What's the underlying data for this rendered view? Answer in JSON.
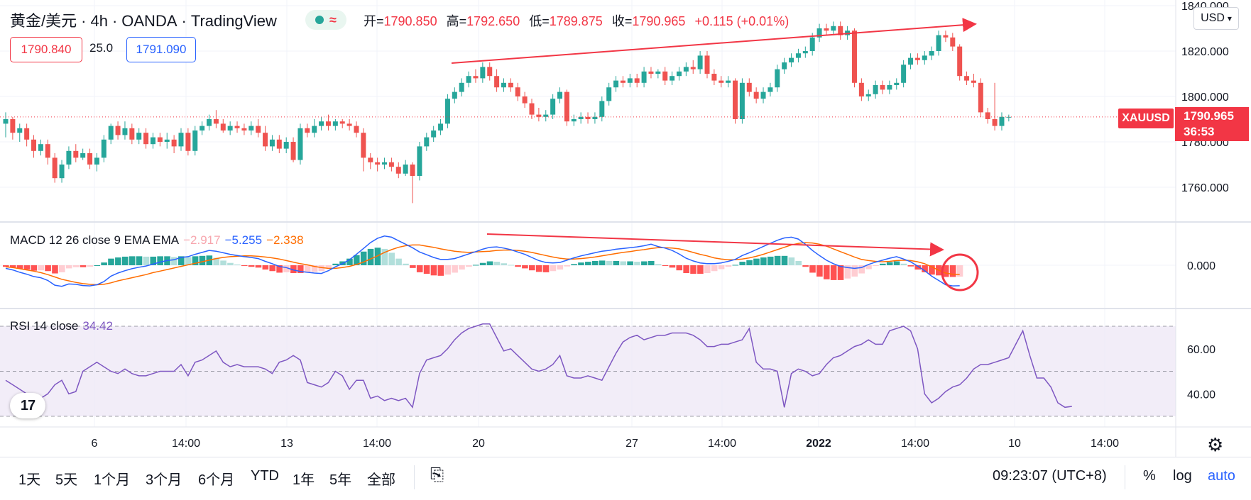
{
  "header": {
    "symbol": "黄金/美元",
    "sep1": "·",
    "interval": "4h",
    "sep2": "·",
    "broker": "OANDA",
    "sep3": "·",
    "platform": "TradingView",
    "ohlc": {
      "open_label": "开=",
      "open": "1790.850",
      "high_label": "高=",
      "high": "1792.650",
      "low_label": "低=",
      "low": "1789.875",
      "close_label": "收=",
      "close": "1790.965",
      "change": "+0.115 (+0.01%)"
    },
    "sell_price": "1790.840",
    "spread": "25.0",
    "buy_price": "1791.090"
  },
  "currency_button": "USD",
  "price_scale": {
    "ticks": [
      "1840.000",
      "1820.000",
      "1800.000",
      "1780.000",
      "1760.000"
    ],
    "current_price": "1790.965",
    "countdown": "36:53",
    "symbol_tag": "XAUUSD"
  },
  "macd": {
    "legend_name": "MACD 12 26 close 9 EMA EMA",
    "hist_value": "−2.917",
    "macd_value": "−5.255",
    "signal_value": "−2.338",
    "scale_tick": "0.000"
  },
  "rsi": {
    "legend_name": "RSI 14 close",
    "value": "34.42",
    "scale_ticks": [
      "60.00",
      "40.00"
    ]
  },
  "time_axis": {
    "labels": [
      "6",
      "14:00",
      "13",
      "14:00",
      "20",
      "27",
      "14:00",
      "2022",
      "14:00",
      "10",
      "14:00"
    ]
  },
  "range_buttons": [
    "1天",
    "5天",
    "1个月",
    "3个月",
    "6个月",
    "YTD",
    "1年",
    "5年",
    "全部"
  ],
  "clock": "09:23:07 (UTC+8)",
  "right_controls": {
    "percent": "%",
    "log": "log",
    "auto": "auto"
  },
  "icons": {
    "settings": "gear-icon",
    "date_range": "calendar-range-icon",
    "logo": "tradingview-logo-icon"
  },
  "colors": {
    "up": "#26a69a",
    "down": "#ef5350",
    "macd": "#2962ff",
    "signal": "#ff6d00",
    "rsi": "#7e57c2",
    "annotation": "#f23645"
  },
  "chart_data": {
    "type": "candlestick",
    "ylim": [
      1750,
      1840
    ],
    "last_price": 1790.965,
    "candles": [
      [
        1788,
        1790,
        1782,
        1793
      ],
      [
        1790,
        1784,
        1781,
        1791
      ],
      [
        1784,
        1786,
        1780,
        1788
      ],
      [
        1786,
        1781,
        1778,
        1788
      ],
      [
        1781,
        1776,
        1773,
        1783
      ],
      [
        1776,
        1779,
        1774,
        1781
      ],
      [
        1779,
        1773,
        1770,
        1781
      ],
      [
        1773,
        1764,
        1762,
        1775
      ],
      [
        1764,
        1770,
        1762,
        1772
      ],
      [
        1770,
        1776,
        1768,
        1778
      ],
      [
        1776,
        1773,
        1771,
        1779
      ],
      [
        1773,
        1775,
        1772,
        1777
      ],
      [
        1775,
        1770,
        1768,
        1777
      ],
      [
        1770,
        1773,
        1767,
        1775
      ],
      [
        1773,
        1781,
        1771,
        1783
      ],
      [
        1781,
        1787,
        1779,
        1788
      ],
      [
        1787,
        1783,
        1781,
        1789
      ],
      [
        1783,
        1786,
        1781,
        1789
      ],
      [
        1786,
        1781,
        1779,
        1788
      ],
      [
        1781,
        1784,
        1779,
        1786
      ],
      [
        1784,
        1779,
        1777,
        1786
      ],
      [
        1779,
        1782,
        1777,
        1784
      ],
      [
        1782,
        1780,
        1778,
        1784
      ],
      [
        1780,
        1781,
        1777,
        1784
      ],
      [
        1781,
        1778,
        1775,
        1783
      ],
      [
        1778,
        1784,
        1776,
        1786
      ],
      [
        1784,
        1776,
        1774,
        1786
      ],
      [
        1776,
        1785,
        1774,
        1787
      ],
      [
        1785,
        1787,
        1783,
        1789
      ],
      [
        1787,
        1790,
        1785,
        1792
      ],
      [
        1790,
        1788,
        1786,
        1794
      ],
      [
        1788,
        1785,
        1784,
        1790
      ],
      [
        1785,
        1787,
        1783,
        1789
      ],
      [
        1787,
        1786,
        1784,
        1789
      ],
      [
        1786,
        1785,
        1783,
        1788
      ],
      [
        1785,
        1787,
        1783,
        1789
      ],
      [
        1787,
        1784,
        1782,
        1790
      ],
      [
        1784,
        1778,
        1776,
        1787
      ],
      [
        1778,
        1781,
        1776,
        1783
      ],
      [
        1781,
        1777,
        1775,
        1783
      ],
      [
        1777,
        1780,
        1775,
        1782
      ],
      [
        1780,
        1772,
        1771,
        1782
      ],
      [
        1772,
        1786,
        1770,
        1788
      ],
      [
        1786,
        1784,
        1782,
        1788
      ],
      [
        1784,
        1787,
        1782,
        1790
      ],
      [
        1787,
        1789,
        1785,
        1791
      ],
      [
        1789,
        1787,
        1785,
        1792
      ],
      [
        1787,
        1789,
        1785,
        1790
      ],
      [
        1789,
        1788,
        1786,
        1790
      ],
      [
        1788,
        1787,
        1785,
        1790
      ],
      [
        1787,
        1784,
        1782,
        1789
      ],
      [
        1784,
        1773,
        1767,
        1786
      ],
      [
        1773,
        1771,
        1768,
        1775
      ],
      [
        1771,
        1770,
        1767,
        1773
      ],
      [
        1770,
        1771,
        1768,
        1773
      ],
      [
        1771,
        1769,
        1767,
        1773
      ],
      [
        1769,
        1766,
        1764,
        1771
      ],
      [
        1766,
        1770,
        1765,
        1772
      ],
      [
        1770,
        1765,
        1753,
        1771
      ],
      [
        1765,
        1778,
        1763,
        1780
      ],
      [
        1778,
        1782,
        1776,
        1784
      ],
      [
        1782,
        1785,
        1780,
        1787
      ],
      [
        1785,
        1788,
        1783,
        1790
      ],
      [
        1788,
        1799,
        1786,
        1801
      ],
      [
        1799,
        1802,
        1797,
        1804
      ],
      [
        1802,
        1806,
        1800,
        1808
      ],
      [
        1806,
        1809,
        1804,
        1811
      ],
      [
        1809,
        1808,
        1806,
        1812
      ],
      [
        1808,
        1813,
        1806,
        1815
      ],
      [
        1813,
        1809,
        1807,
        1815
      ],
      [
        1809,
        1804,
        1802,
        1812
      ],
      [
        1804,
        1806,
        1802,
        1808
      ],
      [
        1806,
        1804,
        1802,
        1808
      ],
      [
        1804,
        1800,
        1798,
        1806
      ],
      [
        1800,
        1797,
        1795,
        1802
      ],
      [
        1797,
        1792,
        1790,
        1799
      ],
      [
        1792,
        1791,
        1789,
        1795
      ],
      [
        1791,
        1792,
        1789,
        1794
      ],
      [
        1792,
        1799,
        1790,
        1801
      ],
      [
        1799,
        1802,
        1797,
        1804
      ],
      [
        1802,
        1789,
        1787,
        1803
      ],
      [
        1789,
        1790,
        1787,
        1792
      ],
      [
        1790,
        1791,
        1788,
        1793
      ],
      [
        1791,
        1790,
        1788,
        1793
      ],
      [
        1790,
        1791,
        1788,
        1793
      ],
      [
        1791,
        1798,
        1789,
        1800
      ],
      [
        1798,
        1804,
        1796,
        1806
      ],
      [
        1804,
        1807,
        1802,
        1809
      ],
      [
        1807,
        1806,
        1804,
        1809
      ],
      [
        1806,
        1808,
        1804,
        1810
      ],
      [
        1808,
        1806,
        1804,
        1810
      ],
      [
        1806,
        1811,
        1804,
        1813
      ],
      [
        1811,
        1810,
        1808,
        1813
      ],
      [
        1810,
        1811,
        1808,
        1812
      ],
      [
        1811,
        1807,
        1805,
        1813
      ],
      [
        1807,
        1809,
        1805,
        1811
      ],
      [
        1809,
        1811,
        1807,
        1813
      ],
      [
        1811,
        1813,
        1809,
        1815
      ],
      [
        1813,
        1812,
        1810,
        1816
      ],
      [
        1812,
        1818,
        1810,
        1820
      ],
      [
        1818,
        1810,
        1808,
        1820
      ],
      [
        1810,
        1807,
        1805,
        1812
      ],
      [
        1807,
        1806,
        1804,
        1809
      ],
      [
        1806,
        1807,
        1804,
        1809
      ],
      [
        1807,
        1790,
        1788,
        1808
      ],
      [
        1790,
        1806,
        1788,
        1808
      ],
      [
        1806,
        1802,
        1800,
        1808
      ],
      [
        1802,
        1799,
        1797,
        1804
      ],
      [
        1799,
        1802,
        1797,
        1804
      ],
      [
        1802,
        1804,
        1800,
        1806
      ],
      [
        1804,
        1812,
        1802,
        1814
      ],
      [
        1812,
        1815,
        1810,
        1817
      ],
      [
        1815,
        1817,
        1813,
        1819
      ],
      [
        1817,
        1819,
        1815,
        1821
      ],
      [
        1819,
        1820,
        1817,
        1822
      ],
      [
        1820,
        1826,
        1818,
        1828
      ],
      [
        1826,
        1830,
        1824,
        1832
      ],
      [
        1830,
        1829,
        1827,
        1832
      ],
      [
        1829,
        1831,
        1827,
        1833
      ],
      [
        1831,
        1827,
        1825,
        1833
      ],
      [
        1827,
        1829,
        1825,
        1831
      ],
      [
        1829,
        1806,
        1804,
        1830
      ],
      [
        1806,
        1800,
        1798,
        1808
      ],
      [
        1800,
        1801,
        1798,
        1803
      ],
      [
        1801,
        1805,
        1799,
        1807
      ],
      [
        1805,
        1803,
        1801,
        1807
      ],
      [
        1803,
        1805,
        1801,
        1807
      ],
      [
        1805,
        1806,
        1803,
        1808
      ],
      [
        1806,
        1814,
        1804,
        1816
      ],
      [
        1814,
        1817,
        1812,
        1819
      ],
      [
        1817,
        1816,
        1814,
        1819
      ],
      [
        1816,
        1818,
        1814,
        1820
      ],
      [
        1818,
        1820,
        1816,
        1822
      ],
      [
        1820,
        1827,
        1818,
        1829
      ],
      [
        1827,
        1826,
        1824,
        1829
      ],
      [
        1826,
        1822,
        1820,
        1828
      ],
      [
        1822,
        1809,
        1807,
        1823
      ],
      [
        1809,
        1807,
        1805,
        1811
      ],
      [
        1807,
        1806,
        1804,
        1810
      ],
      [
        1806,
        1793,
        1791,
        1808
      ],
      [
        1793,
        1790,
        1788,
        1795
      ],
      [
        1790,
        1787,
        1785,
        1806
      ],
      [
        1787,
        1791,
        1785,
        1793
      ],
      [
        1791,
        1791,
        1789,
        1792
      ]
    ],
    "macd": {
      "macd_line": [
        -0.8,
        -1.2,
        -1.8,
        -2.3,
        -2.9,
        -3.2,
        -3.9,
        -5.1,
        -5.4,
        -4.8,
        -4.9,
        -5.2,
        -5.3,
        -5.0,
        -4.2,
        -2.8,
        -2.0,
        -1.4,
        -0.9,
        -0.5,
        -0.2,
        0.3,
        0.8,
        1.2,
        1.4,
        2.0,
        2.2,
        2.8,
        3.3,
        3.8,
        3.6,
        3.2,
        2.8,
        2.5,
        2.2,
        2.0,
        1.7,
        1.0,
        0.4,
        -0.3,
        -0.6,
        -1.2,
        -1.6,
        -1.8,
        -2.0,
        -2.1,
        -1.4,
        -0.4,
        0.4,
        1.4,
        2.8,
        4.3,
        5.8,
        6.9,
        7.5,
        7.2,
        6.3,
        5.4,
        4.5,
        3.4,
        2.7,
        2.0,
        1.5,
        1.5,
        1.7,
        2.3,
        2.9,
        3.5,
        4.1,
        4.6,
        4.7,
        4.4,
        4.0,
        3.4,
        2.8,
        2.0,
        1.2,
        0.7,
        0.6,
        0.7,
        1.3,
        1.9,
        2.4,
        2.8,
        3.2,
        3.6,
        3.8,
        4.1,
        4.3,
        4.5,
        4.7,
        5.0,
        5.4,
        4.8,
        4.4,
        3.8,
        2.9,
        1.8,
        1.1,
        0.6,
        0.4,
        0.4,
        0.6,
        1.0,
        1.5,
        2.5,
        3.2,
        4.0,
        4.8,
        5.6,
        6.4,
        7.0,
        7.2,
        6.7,
        5.4,
        3.8,
        2.5,
        1.3,
        0.4,
        -0.3,
        -0.6,
        -0.8,
        -0.6,
        0.2,
        0.8,
        1.3,
        1.8,
        2.2,
        1.6,
        0.9,
        -0.2,
        -1.4,
        -2.8,
        -3.9,
        -5.0,
        -5.3,
        -5.255
      ],
      "signal_line": [
        -0.4,
        -0.6,
        -0.9,
        -1.2,
        -1.5,
        -1.9,
        -2.4,
        -3.0,
        -3.6,
        -4.0,
        -4.4,
        -4.7,
        -4.9,
        -5.0,
        -4.9,
        -4.5,
        -4.0,
        -3.6,
        -3.2,
        -2.8,
        -2.4,
        -1.9,
        -1.5,
        -1.1,
        -0.7,
        -0.3,
        0.1,
        0.5,
        0.9,
        1.3,
        1.7,
        2.0,
        2.2,
        2.3,
        2.4,
        2.4,
        2.3,
        2.1,
        1.9,
        1.6,
        1.2,
        0.8,
        0.4,
        0.1,
        -0.3,
        -0.6,
        -0.8,
        -0.8,
        -0.6,
        -0.3,
        0.2,
        0.8,
        1.6,
        2.4,
        3.3,
        4.0,
        4.6,
        5.0,
        5.2,
        5.2,
        4.9,
        4.6,
        4.2,
        3.9,
        3.6,
        3.4,
        3.3,
        3.4,
        3.5,
        3.6,
        3.8,
        3.9,
        3.9,
        3.8,
        3.6,
        3.3,
        2.9,
        2.5,
        2.1,
        1.8,
        1.6,
        1.6,
        1.7,
        1.9,
        2.1,
        2.4,
        2.7,
        3.0,
        3.3,
        3.5,
        3.8,
        4.0,
        4.3,
        4.5,
        4.5,
        4.4,
        4.2,
        3.8,
        3.3,
        2.8,
        2.4,
        1.9,
        1.6,
        1.4,
        1.4,
        1.6,
        1.9,
        2.3,
        2.8,
        3.4,
        4.0,
        4.6,
        5.2,
        5.6,
        5.8,
        5.7,
        5.4,
        4.9,
        4.2,
        3.5,
        2.8,
        2.1,
        1.5,
        1.2,
        1.0,
        0.9,
        1.0,
        1.2,
        1.3,
        1.2,
        0.9,
        0.4,
        -0.4,
        -1.3,
        -2.0,
        -2.3,
        -2.338
      ],
      "histogram": [
        -0.4,
        -0.6,
        -0.9,
        -1.1,
        -1.4,
        -1.3,
        -1.5,
        -2.1,
        -1.8,
        -0.8,
        -0.5,
        -0.5,
        -0.4,
        0.0,
        0.7,
        1.7,
        2.0,
        2.2,
        2.3,
        2.3,
        2.2,
        2.2,
        2.3,
        2.3,
        2.1,
        2.3,
        2.1,
        2.3,
        2.4,
        2.5,
        1.9,
        1.2,
        0.6,
        0.2,
        -0.2,
        -0.4,
        -0.6,
        -1.1,
        -1.5,
        -1.9,
        -1.8,
        -2.0,
        -2.0,
        -1.9,
        -1.7,
        -1.5,
        -0.6,
        0.4,
        1.0,
        1.7,
        2.6,
        3.5,
        4.2,
        4.5,
        4.2,
        3.2,
        1.7,
        0.4,
        -0.7,
        -1.8,
        -2.2,
        -2.6,
        -2.7,
        -2.4,
        -1.9,
        -1.1,
        -0.4,
        0.1,
        0.6,
        1.0,
        0.9,
        0.5,
        0.1,
        -0.4,
        -0.8,
        -1.3,
        -1.7,
        -1.8,
        -1.5,
        -1.1,
        -0.3,
        0.3,
        0.7,
        0.9,
        1.1,
        1.2,
        1.1,
        1.1,
        1.0,
        1.0,
        0.9,
        1.0,
        1.1,
        0.3,
        -0.1,
        -0.6,
        -1.3,
        -2.0,
        -2.2,
        -2.2,
        -2.0,
        -1.5,
        -1.0,
        -0.4,
        0.1,
        0.9,
        1.3,
        1.7,
        2.0,
        2.2,
        2.4,
        2.4,
        2.0,
        1.1,
        -0.4,
        -1.9,
        -2.9,
        -3.6,
        -3.8,
        -3.8,
        -3.4,
        -2.9,
        -2.1,
        -1.0,
        -0.2,
        0.4,
        0.8,
        1.0,
        0.4,
        -0.3,
        -1.1,
        -1.8,
        -2.4,
        -2.6,
        -3.0,
        -3.0,
        -2.917
      ]
    },
    "rsi": {
      "upper_band": 70,
      "middle": 50,
      "lower_band": 30,
      "values": [
        46,
        44,
        42,
        40,
        34,
        38,
        40,
        44,
        46,
        40,
        41,
        50,
        52,
        54,
        52,
        50,
        49,
        51,
        49,
        48,
        48,
        49,
        50,
        50,
        50,
        53,
        48,
        54,
        55,
        57,
        59,
        54,
        52,
        53,
        52,
        52,
        52,
        51,
        49,
        54,
        55,
        57,
        55,
        45,
        44,
        43,
        45,
        50,
        48,
        42,
        46,
        46,
        38,
        39,
        37,
        38,
        37,
        38,
        34,
        49,
        55,
        56,
        57,
        60,
        64,
        67,
        69,
        70,
        71,
        71,
        65,
        59,
        60,
        57,
        54,
        51,
        50,
        51,
        53,
        57,
        48,
        47,
        47,
        48,
        47,
        46,
        52,
        58,
        63,
        65,
        66,
        64,
        65,
        66,
        66,
        67,
        67,
        67,
        66,
        64,
        61,
        61,
        62,
        62,
        63,
        64,
        69,
        54,
        51,
        51,
        50,
        34,
        49,
        51,
        50,
        48,
        49,
        53,
        56,
        57,
        59,
        61,
        62,
        64,
        62,
        62,
        68,
        69,
        70,
        68,
        60,
        40,
        36,
        38,
        41,
        43,
        44,
        47,
        51,
        53,
        53,
        54,
        55,
        56,
        62,
        68,
        57,
        47,
        47,
        43,
        36,
        34,
        34.42
      ]
    }
  }
}
